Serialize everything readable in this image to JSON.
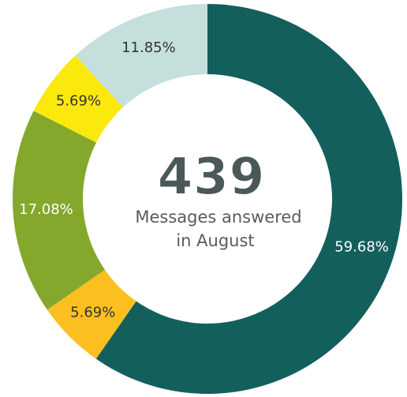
{
  "chart_data": {
    "type": "donut",
    "center_value": 439,
    "center_text": [
      "Messages answered",
      "in August"
    ],
    "values": [
      59.68,
      5.69,
      17.08,
      5.69,
      11.85
    ],
    "value_labels": [
      "59.68%",
      "5.69%",
      "17.08%",
      "5.69%",
      "11.85%"
    ],
    "colors": [
      "#135f5c",
      "#fbbf1f",
      "#84a82c",
      "#fbe90d",
      "#c5dfdc"
    ]
  }
}
